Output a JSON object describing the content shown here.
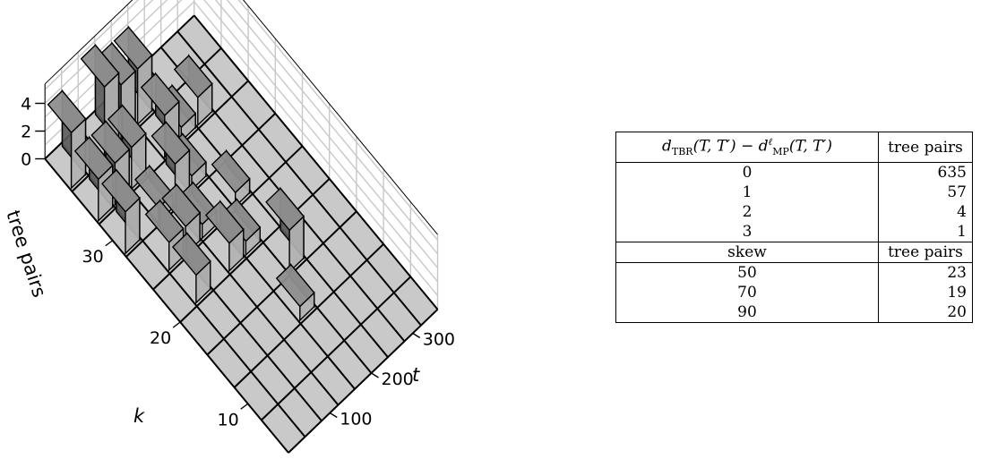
{
  "chart_data": {
    "type": "bar3d",
    "zlabel": "tree pairs",
    "xlabel": "t",
    "ylabel": "k",
    "z_ticks": [
      "0",
      "2",
      "4"
    ],
    "t_ticks": [
      "100",
      "200",
      "300"
    ],
    "k_ticks": [
      "10",
      "20",
      "30"
    ],
    "zlim": [
      0,
      5
    ],
    "grid": true,
    "t_bins": [
      "0-40",
      "40-80",
      "80-120",
      "120-160",
      "160-200",
      "200-240",
      "240-280",
      "280-320",
      "320-360"
    ],
    "k_bins": [
      "4-8",
      "8-12",
      "12-16",
      "16-20",
      "20-24",
      "24-28",
      "28-32",
      "32-36",
      "36-40"
    ],
    "bars": [
      {
        "t": 0,
        "k": 8,
        "value": 4
      },
      {
        "t": 0,
        "k": 7,
        "value": 3
      },
      {
        "t": 1,
        "k": 7,
        "value": 3
      },
      {
        "t": 0,
        "k": 6,
        "value": 3
      },
      {
        "t": 1,
        "k": 5,
        "value": 2
      },
      {
        "t": 1,
        "k": 4,
        "value": 2
      },
      {
        "t": 2,
        "k": 8,
        "value": 5
      },
      {
        "t": 3,
        "k": 8,
        "value": 4
      },
      {
        "t": 2,
        "k": 7,
        "value": 3
      },
      {
        "t": 2,
        "k": 6,
        "value": 1
      },
      {
        "t": 3,
        "k": 6,
        "value": 3
      },
      {
        "t": 2,
        "k": 5,
        "value": 2
      },
      {
        "t": 3,
        "k": 5,
        "value": 1
      },
      {
        "t": 4,
        "k": 8,
        "value": 4
      },
      {
        "t": 4,
        "k": 7,
        "value": 3
      },
      {
        "t": 4,
        "k": 6,
        "value": 1
      },
      {
        "t": 5,
        "k": 7,
        "value": 1
      },
      {
        "t": 6,
        "k": 7,
        "value": 2
      },
      {
        "t": 3,
        "k": 4,
        "value": 2
      },
      {
        "t": 4,
        "k": 4,
        "value": 1
      },
      {
        "t": 5,
        "k": 3,
        "value": 3
      },
      {
        "t": 5,
        "k": 5,
        "value": 1
      },
      {
        "t": 4,
        "k": 2,
        "value": 1
      }
    ]
  },
  "table": {
    "header1": {
      "col1": {
        "base1": "d",
        "sub1": "TBR",
        "mid": "(T, T′) − d",
        "sup": "ℓ",
        "sub2": "MP",
        "end": "(T, T′)"
      },
      "col2": "tree pairs"
    },
    "rows1": [
      {
        "a": "0",
        "b": "635"
      },
      {
        "a": "1",
        "b": "57"
      },
      {
        "a": "2",
        "b": "4"
      },
      {
        "a": "3",
        "b": "1"
      }
    ],
    "header2": {
      "col1": "skew",
      "col2": "tree pairs"
    },
    "rows2": [
      {
        "a": "50",
        "b": "23"
      },
      {
        "a": "70",
        "b": "19"
      },
      {
        "a": "90",
        "b": "20"
      }
    ]
  }
}
